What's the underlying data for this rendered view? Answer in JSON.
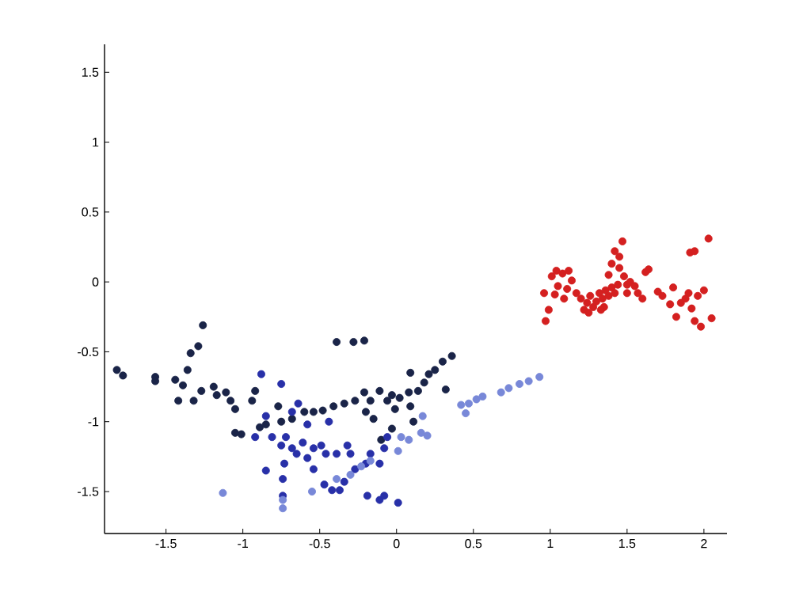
{
  "chart_data": {
    "type": "scatter",
    "xlim": [
      -1.9,
      2.15
    ],
    "ylim": [
      -1.8,
      1.7
    ],
    "xticks": [
      -1.5,
      -1,
      -0.5,
      0,
      0.5,
      1,
      1.5,
      2
    ],
    "yticks": [
      -1.5,
      -1,
      -0.5,
      0,
      0.5,
      1,
      1.5
    ],
    "marker": "circle",
    "series": [
      {
        "color": "#1a2448",
        "x": [
          -1.82,
          -1.78,
          -1.57,
          -1.57,
          -1.44,
          -1.42,
          -1.39,
          -1.36,
          -1.34,
          -1.29,
          -1.26,
          -1.32,
          -1.27,
          -1.19,
          -1.17,
          -1.11,
          -1.08,
          -1.05,
          -1.05,
          -1.01,
          -0.94,
          -0.92,
          -0.89,
          -0.85,
          -0.77,
          -0.75,
          -0.68,
          -0.6,
          -0.54,
          -0.48,
          -0.41,
          -0.34,
          -0.39,
          -0.28,
          -0.21,
          -0.27,
          -0.21,
          -0.17,
          -0.15,
          -0.11,
          -0.06,
          -0.03,
          0.02,
          0.08,
          0.09,
          0.11,
          0.14,
          0.18,
          0.21,
          0.25,
          0.3,
          0.32,
          0.36,
          -0.03,
          -0.1,
          -0.01,
          -0.2,
          0.09
        ],
        "values": [
          -0.63,
          -0.67,
          -0.68,
          -0.71,
          -0.7,
          -0.85,
          -0.74,
          -0.63,
          -0.51,
          -0.46,
          -0.31,
          -0.85,
          -0.78,
          -0.75,
          -0.81,
          -0.79,
          -0.85,
          -0.91,
          -1.08,
          -1.09,
          -0.85,
          -0.78,
          -1.04,
          -1.02,
          -0.89,
          -1.0,
          -0.98,
          -0.93,
          -0.93,
          -0.92,
          -0.89,
          -0.87,
          -0.43,
          -0.43,
          -0.42,
          -0.85,
          -0.79,
          -0.85,
          -0.98,
          -0.78,
          -0.85,
          -0.81,
          -0.83,
          -0.79,
          -0.89,
          -1.0,
          -0.78,
          -0.72,
          -0.66,
          -0.63,
          -0.57,
          -0.77,
          -0.53,
          -1.05,
          -1.13,
          -0.91,
          -0.93,
          -0.65
        ]
      },
      {
        "color": "#2830a8",
        "x": [
          -0.88,
          -0.75,
          -0.85,
          -0.92,
          -0.81,
          -0.85,
          -0.75,
          -0.72,
          -0.68,
          -0.73,
          -0.74,
          -0.74,
          -0.65,
          -0.61,
          -0.58,
          -0.54,
          -0.49,
          -0.46,
          -0.54,
          -0.47,
          -0.42,
          -0.37,
          -0.34,
          -0.39,
          -0.32,
          -0.3,
          -0.27,
          -0.2,
          -0.17,
          -0.11,
          -0.19,
          -0.11,
          -0.08,
          0.01,
          -0.08,
          -0.64,
          -0.58,
          -0.44,
          -0.68,
          -0.06
        ],
        "values": [
          -0.66,
          -0.73,
          -0.96,
          -1.11,
          -1.11,
          -1.35,
          -1.17,
          -1.11,
          -1.19,
          -1.3,
          -1.41,
          -1.53,
          -1.23,
          -1.15,
          -1.26,
          -1.19,
          -1.17,
          -1.23,
          -1.34,
          -1.45,
          -1.49,
          -1.49,
          -1.43,
          -1.23,
          -1.17,
          -1.23,
          -1.34,
          -1.3,
          -1.23,
          -1.3,
          -1.53,
          -1.56,
          -1.53,
          -1.58,
          -1.19,
          -0.87,
          -1.02,
          -1.0,
          -0.93,
          -1.11
        ]
      },
      {
        "color": "#7888d8",
        "x": [
          -1.13,
          -0.74,
          -0.74,
          -0.55,
          -0.39,
          -0.3,
          -0.23,
          -0.17,
          0.01,
          0.03,
          0.08,
          0.16,
          0.2,
          0.17,
          0.42,
          0.45,
          0.47,
          0.52,
          0.56,
          0.68,
          0.73,
          0.8,
          0.86,
          0.93
        ],
        "values": [
          -1.51,
          -1.62,
          -1.56,
          -1.5,
          -1.41,
          -1.38,
          -1.32,
          -1.28,
          -1.21,
          -1.11,
          -1.13,
          -1.08,
          -1.1,
          -0.96,
          -0.88,
          -0.94,
          -0.87,
          -0.84,
          -0.82,
          -0.79,
          -0.76,
          -0.73,
          -0.71,
          -0.68
        ]
      },
      {
        "color": "#d42020",
        "x": [
          0.96,
          0.97,
          0.99,
          1.01,
          1.04,
          1.05,
          1.03,
          1.08,
          1.12,
          1.09,
          1.11,
          1.14,
          1.17,
          1.2,
          1.22,
          1.24,
          1.26,
          1.28,
          1.3,
          1.32,
          1.34,
          1.36,
          1.38,
          1.4,
          1.42,
          1.44,
          1.38,
          1.4,
          1.42,
          1.45,
          1.47,
          1.45,
          1.48,
          1.5,
          1.52,
          1.55,
          1.57,
          1.6,
          1.62,
          1.64,
          1.7,
          1.73,
          1.78,
          1.8,
          1.82,
          1.85,
          1.88,
          1.9,
          1.92,
          1.94,
          1.96,
          1.98,
          2.0,
          1.91,
          1.94,
          2.03,
          2.05,
          1.35,
          1.25,
          1.33,
          1.5
        ],
        "values": [
          -0.08,
          -0.28,
          -0.2,
          0.04,
          0.08,
          -0.03,
          -0.09,
          0.06,
          0.08,
          -0.12,
          -0.05,
          0.01,
          -0.08,
          -0.12,
          -0.2,
          -0.15,
          -0.1,
          -0.18,
          -0.14,
          -0.08,
          -0.12,
          -0.06,
          -0.1,
          -0.04,
          -0.08,
          -0.02,
          0.05,
          0.13,
          0.22,
          0.18,
          0.29,
          0.1,
          0.04,
          -0.02,
          0.0,
          -0.03,
          -0.08,
          -0.12,
          0.07,
          0.09,
          -0.07,
          -0.1,
          -0.16,
          -0.04,
          -0.25,
          -0.15,
          -0.12,
          -0.08,
          -0.19,
          -0.28,
          -0.1,
          -0.32,
          -0.06,
          0.21,
          0.22,
          0.31,
          -0.26,
          -0.18,
          -0.22,
          -0.2,
          -0.08
        ]
      }
    ]
  }
}
